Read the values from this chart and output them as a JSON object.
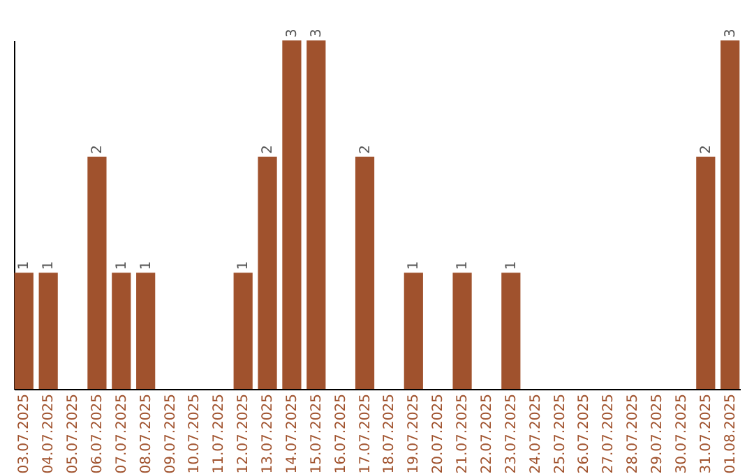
{
  "chart_data": {
    "type": "bar",
    "categories": [
      "03.07.2025",
      "04.07.2025",
      "05.07.2025",
      "06.07.2025",
      "07.07.2025",
      "08.07.2025",
      "09.07.2025",
      "10.07.2025",
      "11.07.2025",
      "12.07.2025",
      "13.07.2025",
      "14.07.2025",
      "15.07.2025",
      "16.07.2025",
      "17.07.2025",
      "18.07.2025",
      "19.07.2025",
      "20.07.2025",
      "21.07.2025",
      "22.07.2025",
      "23.07.2025",
      "24.07.2025",
      "25.07.2025",
      "26.07.2025",
      "27.07.2025",
      "28.07.2025",
      "29.07.2025",
      "30.07.2025",
      "31.07.2025",
      "01.08.2025"
    ],
    "values": [
      1,
      1,
      0,
      2,
      1,
      1,
      0,
      0,
      0,
      1,
      2,
      3,
      3,
      0,
      2,
      0,
      1,
      0,
      1,
      0,
      1,
      0,
      0,
      0,
      0,
      0,
      0,
      0,
      2,
      3
    ],
    "value_labels": [
      "1",
      "1",
      null,
      "2",
      "1",
      "1",
      null,
      null,
      null,
      "1",
      "2",
      "3",
      "3",
      null,
      "2",
      null,
      "1",
      null,
      "1",
      null,
      "1",
      null,
      null,
      null,
      null,
      null,
      null,
      null,
      "2",
      "3"
    ],
    "color": "#a0522d",
    "tick_labels": "x"
  }
}
